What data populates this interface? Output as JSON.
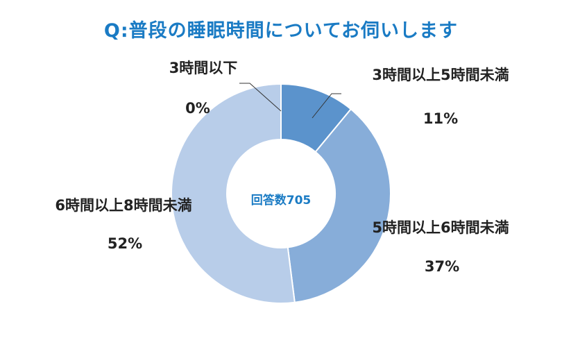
{
  "title": "Q:普段の睡眠時間についてお伺いします",
  "chart_data": {
    "type": "pie",
    "center_label": "回答数705",
    "categories": [
      "3時間以下",
      "3時間以上5時間未満",
      "5時間以上6時間未満",
      "6時間以上8時間未満"
    ],
    "values": [
      0,
      11,
      37,
      52
    ],
    "value_labels": [
      "0%",
      "11%",
      "37%",
      "52%"
    ],
    "colors": [
      "#5a8fc8",
      "#5b93cc",
      "#87add9",
      "#b8cde9"
    ],
    "legend": "none"
  }
}
